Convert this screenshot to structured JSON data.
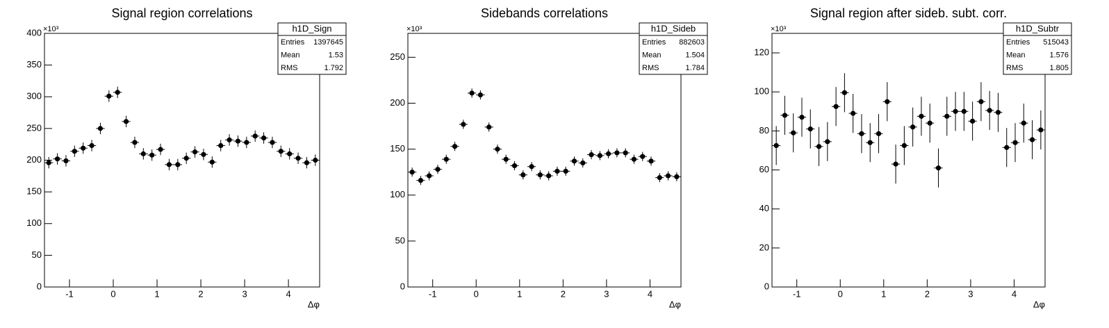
{
  "chart_data": [
    {
      "type": "histogram",
      "title": "Signal region correlations",
      "x_label": "Δφ",
      "y_exponent": "×10³",
      "bins": [
        -1.5708,
        -1.3744,
        -1.1781,
        -0.9817,
        -0.7854,
        -0.589,
        -0.3927,
        -0.1963,
        0,
        0.1963,
        0.3927,
        0.589,
        0.7854,
        0.9817,
        1.1781,
        1.3744,
        1.5708,
        1.7671,
        1.9635,
        2.1598,
        2.3562,
        2.5525,
        2.7489,
        2.9452,
        3.1416,
        3.3379,
        3.5343,
        3.7306,
        3.927,
        4.1233,
        4.3197,
        4.516,
        4.7124
      ],
      "values": [
        196,
        202,
        199,
        214,
        219,
        223,
        250,
        301,
        307,
        261,
        228,
        210,
        208,
        217,
        193,
        193,
        203,
        213,
        209,
        197,
        223,
        232,
        230,
        228,
        238,
        235,
        228,
        214,
        210,
        203,
        196,
        200
      ],
      "errors": [
        9,
        9,
        9,
        9,
        9,
        9,
        9,
        9,
        9,
        9,
        9,
        9,
        9,
        9,
        9,
        9,
        9,
        9,
        9,
        9,
        9,
        9,
        9,
        9,
        9,
        9,
        9,
        9,
        9,
        9,
        9,
        9
      ],
      "xlim": [
        -1.5708,
        4.7124
      ],
      "xticks": [
        -1,
        0,
        1,
        2,
        3,
        4
      ],
      "ylim": [
        0,
        400
      ],
      "yticks": [
        0,
        50,
        100,
        150,
        200,
        250,
        300,
        350,
        400
      ],
      "color": "#000000",
      "stats": {
        "name": "h1D_Sign",
        "labels": [
          "Entries",
          "Mean",
          "RMS"
        ],
        "values": [
          1397645,
          1.53,
          1.792
        ]
      }
    },
    {
      "type": "histogram",
      "title": "Sidebands correlations",
      "x_label": "Δφ",
      "y_exponent": "×10³",
      "bins": [
        -1.5708,
        -1.3744,
        -1.1781,
        -0.9817,
        -0.7854,
        -0.589,
        -0.3927,
        -0.1963,
        0,
        0.1963,
        0.3927,
        0.589,
        0.7854,
        0.9817,
        1.1781,
        1.3744,
        1.5708,
        1.7671,
        1.9635,
        2.1598,
        2.3562,
        2.5525,
        2.7489,
        2.9452,
        3.1416,
        3.3379,
        3.5343,
        3.7306,
        3.927,
        4.1233,
        4.3197,
        4.516,
        4.7124
      ],
      "values": [
        125,
        116,
        121,
        128,
        139,
        153,
        177,
        211,
        209,
        174,
        150,
        139,
        132,
        122,
        131,
        122,
        121,
        126,
        126,
        137,
        135,
        144,
        143,
        145,
        146,
        146,
        139,
        142,
        137,
        119,
        121,
        120
      ],
      "errors": [
        5,
        5,
        5,
        5,
        5,
        5,
        5,
        5,
        5,
        5,
        5,
        5,
        5,
        5,
        5,
        5,
        5,
        5,
        5,
        5,
        5,
        5,
        5,
        5,
        5,
        5,
        5,
        5,
        5,
        5,
        5,
        5
      ],
      "xlim": [
        -1.5708,
        4.7124
      ],
      "xticks": [
        -1,
        0,
        1,
        2,
        3,
        4
      ],
      "ylim": [
        0,
        276
      ],
      "yticks": [
        0,
        50,
        100,
        150,
        200,
        250
      ],
      "color": "#000000",
      "stats": {
        "name": "h1D_Sideb",
        "labels": [
          "Entries",
          "Mean",
          "RMS"
        ],
        "values": [
          882603,
          1.504,
          1.784
        ]
      }
    },
    {
      "type": "histogram",
      "title": "Signal region after sideb. subt. corr.",
      "x_label": "Δφ",
      "y_exponent": "×10³",
      "bins": [
        -1.5708,
        -1.3744,
        -1.1781,
        -0.9817,
        -0.7854,
        -0.589,
        -0.3927,
        -0.1963,
        0,
        0.1963,
        0.3927,
        0.589,
        0.7854,
        0.9817,
        1.1781,
        1.3744,
        1.5708,
        1.7671,
        1.9635,
        2.1598,
        2.3562,
        2.5525,
        2.7489,
        2.9452,
        3.1416,
        3.3379,
        3.5343,
        3.7306,
        3.927,
        4.1233,
        4.3197,
        4.516,
        4.7124
      ],
      "values": [
        72.5,
        88,
        79,
        87,
        81,
        72,
        74.5,
        92.5,
        99.6,
        89,
        78.6,
        74,
        78.6,
        95,
        63,
        72.5,
        82,
        87.5,
        84,
        61,
        87.5,
        90,
        90,
        85,
        95,
        90.5,
        89.5,
        71.5,
        74,
        84,
        75.5,
        80.5
      ],
      "errors": [
        10,
        10,
        10,
        10,
        10,
        10,
        10,
        10,
        10,
        10,
        10,
        10,
        10,
        10,
        10,
        10,
        10,
        10,
        10,
        10,
        10,
        10,
        10,
        10,
        10,
        10,
        10,
        10,
        10,
        10,
        10,
        10
      ],
      "xlim": [
        -1.5708,
        4.7124
      ],
      "xticks": [
        -1,
        0,
        1,
        2,
        3,
        4
      ],
      "ylim": [
        0,
        130
      ],
      "yticks": [
        0,
        20,
        40,
        60,
        80,
        100,
        120
      ],
      "color": "#000000",
      "stats": {
        "name": "h1D_Subtr",
        "labels": [
          "Entries",
          "Mean",
          "RMS"
        ],
        "values": [
          515043,
          1.576,
          1.805
        ]
      }
    }
  ]
}
